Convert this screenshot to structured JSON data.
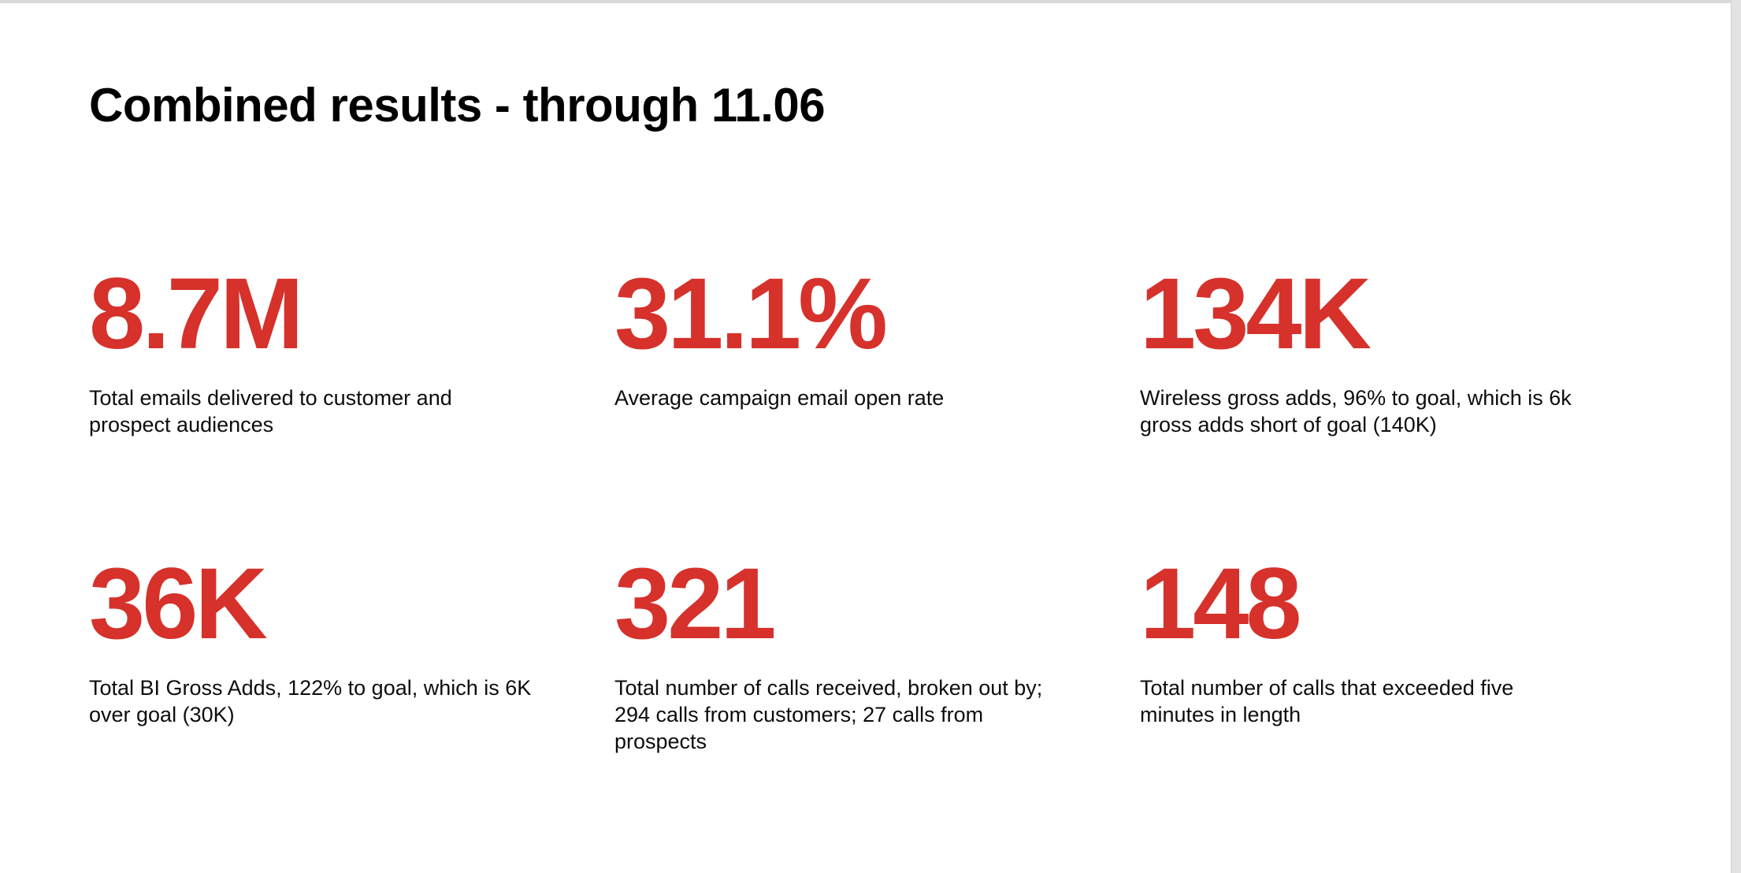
{
  "page": {
    "title": "Combined results - through 11.06",
    "background_color": "#ffffff",
    "accent_color": "#d6312b",
    "text_color": "#000000",
    "edge_color": "#d9d9d9"
  },
  "stats": [
    {
      "value": "8.7M",
      "caption": "Total emails delivered to customer and prospect audiences"
    },
    {
      "value": "31.1%",
      "caption": "Average campaign email open rate"
    },
    {
      "value": "134K",
      "caption": "Wireless gross adds, 96% to goal, which is 6k gross adds short of goal (140K)"
    },
    {
      "value": "36K",
      "caption": "Total BI Gross Adds, 122% to goal, which is 6K over goal (30K)"
    },
    {
      "value": "321",
      "caption": "Total number of calls received, broken out by; 294 calls from customers; 27 calls from prospects"
    },
    {
      "value": "148",
      "caption": "Total number of calls that exceeded five minutes in length"
    }
  ]
}
